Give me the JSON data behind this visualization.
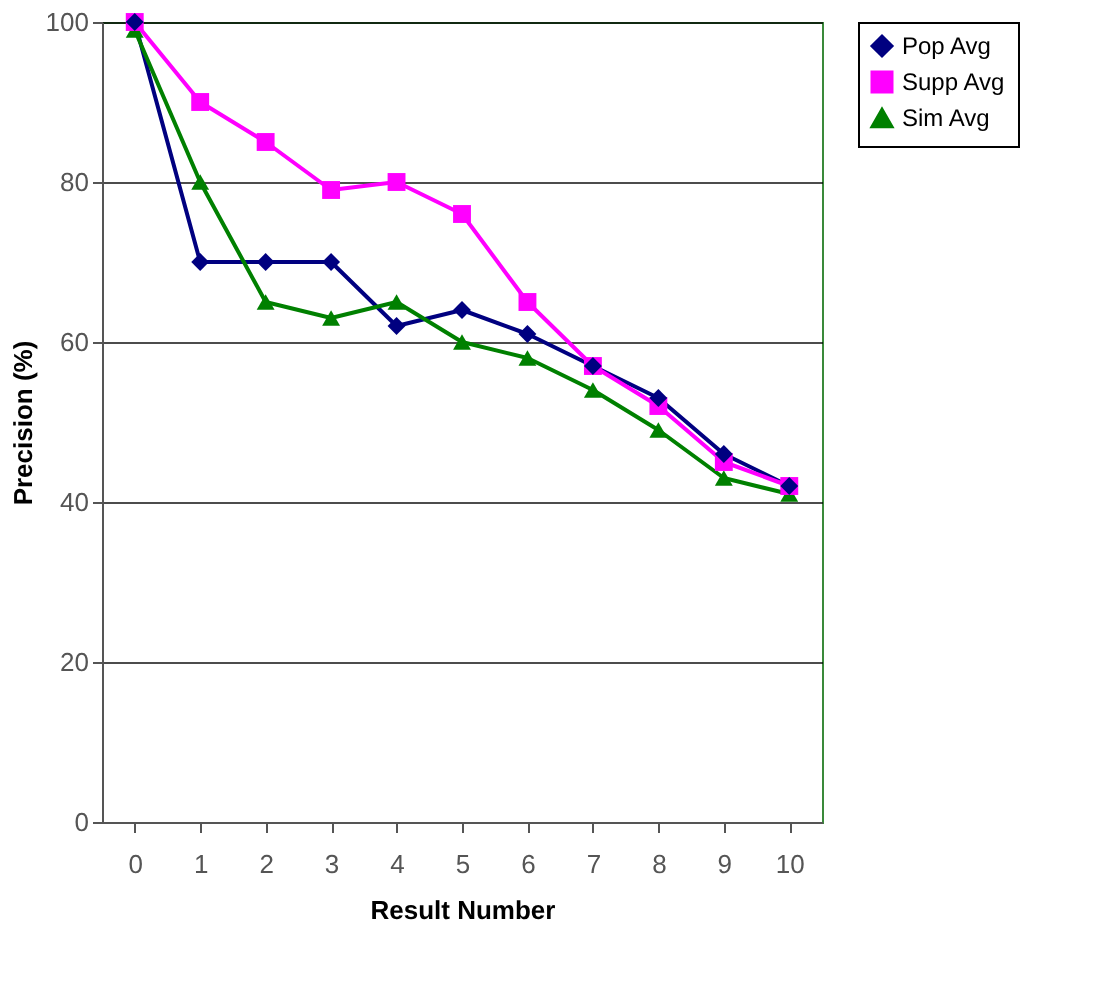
{
  "chart_data": {
    "type": "line",
    "xlabel": "Result Number",
    "ylabel": "Precision (%)",
    "categories": [
      "0",
      "1",
      "2",
      "3",
      "4",
      "5",
      "6",
      "7",
      "8",
      "9",
      "10"
    ],
    "series": [
      {
        "name": "Pop Avg",
        "color": "#000080",
        "marker": "diamond",
        "values": [
          100,
          70,
          70,
          70,
          62,
          64,
          61,
          57,
          53,
          46,
          42
        ]
      },
      {
        "name": "Supp Avg",
        "color": "#ff00ff",
        "marker": "square",
        "values": [
          100,
          90,
          85,
          79,
          80,
          76,
          65,
          57,
          52,
          45,
          42
        ]
      },
      {
        "name": "Sim Avg",
        "color": "#008000",
        "marker": "triangle",
        "values": [
          99,
          80,
          65,
          63,
          65,
          60,
          58,
          54,
          49,
          43,
          41
        ]
      }
    ],
    "ylim": [
      0,
      100
    ],
    "yticks": [
      0,
      20,
      40,
      60,
      80,
      100
    ],
    "grid": "y",
    "legend": "right"
  }
}
